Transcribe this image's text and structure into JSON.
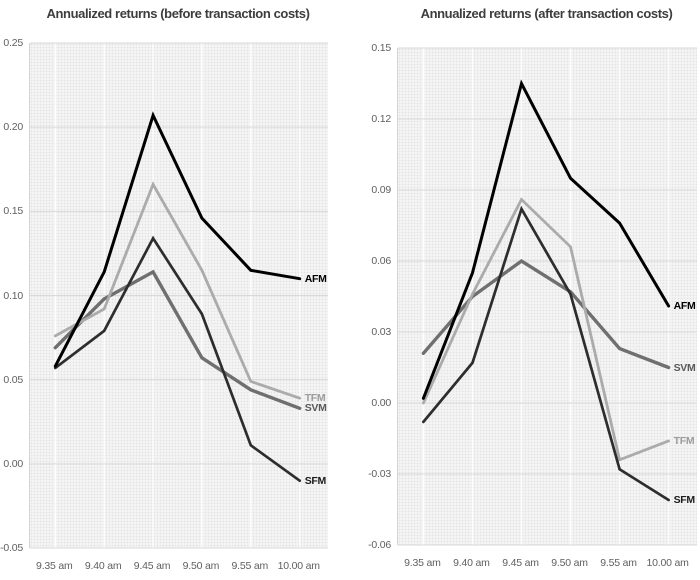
{
  "chart_data": [
    {
      "type": "line",
      "title": "Annualized returns (before transaction costs)",
      "xlabel": "",
      "ylabel": "",
      "grid": true,
      "legend_position": "inline-end-of-line-labels",
      "x_categories": [
        "9.35 am",
        "9.40 am",
        "9.45 am",
        "9.50 am",
        "9.55 am",
        "10.00 am"
      ],
      "y_tick_labels": [
        "0.25",
        "0.20",
        "0.15",
        "0.10",
        "0.05",
        "0.00",
        "-0.05"
      ],
      "ylim": [
        -0.05,
        0.25
      ],
      "series": [
        {
          "name": "SVM",
          "color": "#6f6f6f",
          "label_color": "#5a5a5a",
          "stroke_width": 3.4,
          "values": [
            0.069,
            0.098,
            0.114,
            0.063,
            0.044,
            0.033
          ]
        },
        {
          "name": "TFM",
          "color": "#ababab",
          "label_color": "#9c9c9c",
          "stroke_width": 2.8,
          "values": [
            0.076,
            0.092,
            0.166,
            0.115,
            0.049,
            0.039
          ]
        },
        {
          "name": "SFM",
          "color": "#2d2d2d",
          "label_color": "#1c1c1c",
          "stroke_width": 2.7,
          "values": [
            0.057,
            0.079,
            0.134,
            0.089,
            0.011,
            -0.01
          ]
        },
        {
          "name": "AFM",
          "color": "#000000",
          "label_color": "#000000",
          "stroke_width": 3.0,
          "values": [
            0.058,
            0.114,
            0.207,
            0.146,
            0.115,
            0.11
          ]
        }
      ]
    },
    {
      "type": "line",
      "title": "Annualized returns (after transaction costs)",
      "xlabel": "",
      "ylabel": "",
      "grid": true,
      "legend_position": "inline-end-of-line-labels",
      "x_categories": [
        "9.35 am",
        "9.40 am",
        "9.45 am",
        "9.50 am",
        "9.55 am",
        "10.00 am"
      ],
      "y_tick_labels": [
        "0.15",
        "0.12",
        "0.09",
        "0.06",
        "0.03",
        "0.00",
        "-0.03",
        "-0.06"
      ],
      "ylim": [
        -0.06,
        0.15
      ],
      "series": [
        {
          "name": "SVM",
          "color": "#6f6f6f",
          "label_color": "#5a5a5a",
          "stroke_width": 3.4,
          "values": [
            0.021,
            0.045,
            0.06,
            0.047,
            0.023,
            0.015
          ]
        },
        {
          "name": "TFM",
          "color": "#ababab",
          "label_color": "#9c9c9c",
          "stroke_width": 2.8,
          "values": [
            0.0,
            0.046,
            0.086,
            0.066,
            -0.024,
            -0.016
          ]
        },
        {
          "name": "SFM",
          "color": "#2d2d2d",
          "label_color": "#1c1c1c",
          "stroke_width": 2.7,
          "values": [
            -0.008,
            0.017,
            0.082,
            0.046,
            -0.028,
            -0.041
          ]
        },
        {
          "name": "AFM",
          "color": "#000000",
          "label_color": "#000000",
          "stroke_width": 3.0,
          "values": [
            0.002,
            0.055,
            0.135,
            0.095,
            0.076,
            0.041
          ]
        }
      ]
    }
  ]
}
